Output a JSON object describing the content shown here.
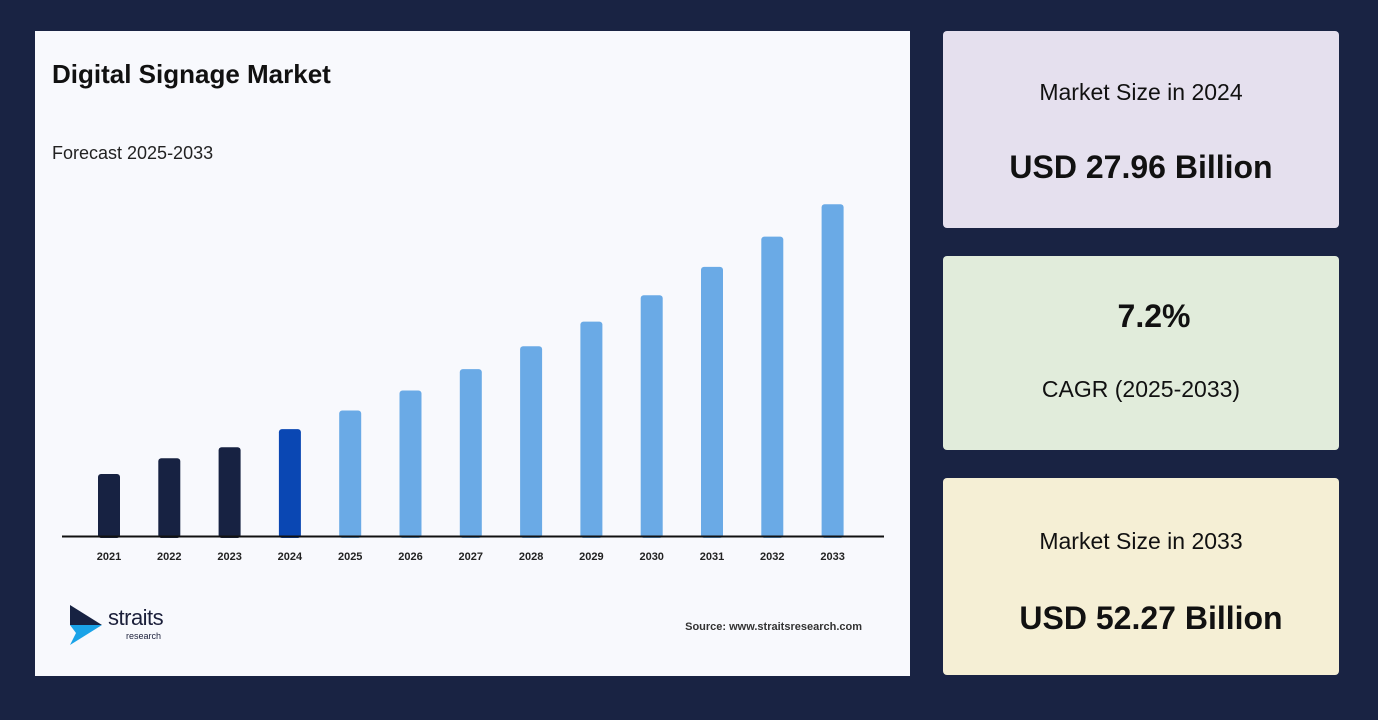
{
  "chart_data": {
    "type": "bar",
    "title": "Digital Signage Market",
    "subtitle": "Forecast 2025-2033",
    "categories": [
      "2021",
      "2022",
      "2023",
      "2024",
      "2025",
      "2026",
      "2027",
      "2028",
      "2029",
      "2030",
      "2031",
      "2032",
      "2033"
    ],
    "values": [
      23.1,
      24.8,
      26.0,
      27.96,
      29.97,
      32.13,
      34.44,
      36.92,
      39.58,
      42.43,
      45.49,
      48.76,
      52.27
    ],
    "unit": "USD Billion",
    "colors": {
      "historical": "#172242",
      "base_year": "#0a47b3",
      "forecast": "#6aaae6"
    },
    "grid": false,
    "legend": "none"
  },
  "source": "Source: www.straitsresearch.com",
  "logo": {
    "name": "straits",
    "sub": "research"
  },
  "cards": [
    {
      "label": "Market Size in 2024",
      "value": "USD 27.96 Billion",
      "bg": "#e5e0ee"
    },
    {
      "label": "CAGR (2025-2033)",
      "value": "7.2%",
      "bg": "#e1ecdb"
    },
    {
      "label": "Market Size in 2033",
      "value": "USD 52.27 Billion",
      "bg": "#f5efd5"
    }
  ]
}
